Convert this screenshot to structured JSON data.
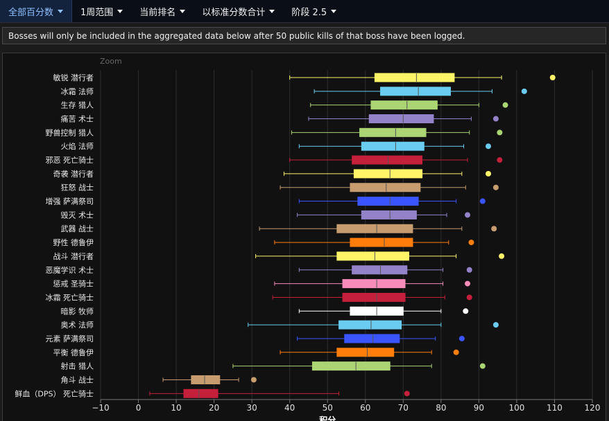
{
  "tabs": [
    {
      "label": "全部百分数",
      "active": true
    },
    {
      "label": "1周范围",
      "active": false
    },
    {
      "label": "当前排名",
      "active": false
    },
    {
      "label": "以标准分数合计",
      "active": false
    },
    {
      "label": "阶段 2.5",
      "active": false
    }
  ],
  "notice": "Bosses will only be included in the aggregated data below after 50 public kills of that boss have been logged.",
  "zoom_label": "Zoom",
  "chart_data": {
    "type": "boxplot",
    "orientation": "horizontal",
    "xlabel": "积分",
    "xlim": [
      -10,
      120
    ],
    "xticks": [
      -10,
      0,
      10,
      20,
      30,
      40,
      50,
      60,
      70,
      80,
      90,
      100,
      110,
      120
    ],
    "grid": true,
    "categories": [
      {
        "label": "敏锐 潜行者",
        "color": "#fff468",
        "min": 40,
        "q1": 62.5,
        "median": 73.5,
        "q3": 83.5,
        "max": 96,
        "outlier": 109.5
      },
      {
        "label": "冰霜 法师",
        "color": "#69ccf0",
        "min": 46.5,
        "q1": 64,
        "median": 74,
        "q3": 82.5,
        "max": 93.5,
        "outlier": 102
      },
      {
        "label": "生存 猎人",
        "color": "#abd473",
        "min": 45.5,
        "q1": 61.5,
        "median": 71,
        "q3": 79,
        "max": 90,
        "outlier": 97
      },
      {
        "label": "痛苦 术士",
        "color": "#9482c9",
        "min": 45,
        "q1": 61,
        "median": 70,
        "q3": 78,
        "max": 88,
        "outlier": 94.5
      },
      {
        "label": "野兽控制 猎人",
        "color": "#abd473",
        "min": 40.5,
        "q1": 58.5,
        "median": 68,
        "q3": 76,
        "max": 87.5,
        "outlier": 95.5
      },
      {
        "label": "火焰 法师",
        "color": "#69ccf0",
        "min": 42.5,
        "q1": 59,
        "median": 68,
        "q3": 75.5,
        "max": 86,
        "outlier": 92.5
      },
      {
        "label": "邪恶 死亡骑士",
        "color": "#c41f3b",
        "min": 40,
        "q1": 56.5,
        "median": 66,
        "q3": 75,
        "max": 87,
        "outlier": 95.5
      },
      {
        "label": "奇袭 潜行者",
        "color": "#fff468",
        "min": 38.5,
        "q1": 57,
        "median": 66.5,
        "q3": 75,
        "max": 85.5,
        "outlier": 92.5
      },
      {
        "label": "狂怒 战士",
        "color": "#c79c6e",
        "min": 37.5,
        "q1": 56,
        "median": 65.5,
        "q3": 74.5,
        "max": 86.5,
        "outlier": 94.5
      },
      {
        "label": "增强 萨满祭司",
        "color": "#3a55ff",
        "min": 42.5,
        "q1": 58,
        "median": 66.5,
        "q3": 74,
        "max": 84,
        "outlier": 91
      },
      {
        "label": "毁灭 术士",
        "color": "#9482c9",
        "min": 42,
        "q1": 59,
        "median": 66.5,
        "q3": 73.5,
        "max": 81.5,
        "outlier": 87
      },
      {
        "label": "武器 战士",
        "color": "#c79c6e",
        "min": 32,
        "q1": 52.5,
        "median": 63,
        "q3": 72.5,
        "max": 85.5,
        "outlier": 94
      },
      {
        "label": "野性 德鲁伊",
        "color": "#ff7d0a",
        "min": 36,
        "q1": 56,
        "median": 65,
        "q3": 72.5,
        "max": 82,
        "outlier": 88
      },
      {
        "label": "战斗 潜行者",
        "color": "#fff468",
        "min": 31,
        "q1": 52.5,
        "median": 62.5,
        "q3": 71.5,
        "max": 84,
        "outlier": 96
      },
      {
        "label": "恶魔学识 术士",
        "color": "#9482c9",
        "min": 42.5,
        "q1": 56.5,
        "median": 64,
        "q3": 71,
        "max": 80.5,
        "outlier": 87.5
      },
      {
        "label": "惩戒 圣骑士",
        "color": "#f58cba",
        "min": 36,
        "q1": 54,
        "median": 63,
        "q3": 70.5,
        "max": 80.5,
        "outlier": 87
      },
      {
        "label": "冰霜 死亡骑士",
        "color": "#c41f3b",
        "min": 35.5,
        "q1": 54,
        "median": 63,
        "q3": 70.5,
        "max": 81,
        "outlier": 87.5
      },
      {
        "label": "暗影 牧师",
        "color": "#ffffff",
        "min": 42.5,
        "q1": 56,
        "median": 63,
        "q3": 70,
        "max": 80,
        "outlier": 86.5
      },
      {
        "label": "奥术 法师",
        "color": "#69ccf0",
        "min": 29,
        "q1": 53,
        "median": 61.5,
        "q3": 69.5,
        "max": 80,
        "outlier": 94.5
      },
      {
        "label": "元素 萨满祭司",
        "color": "#3a55ff",
        "min": 42,
        "q1": 54.5,
        "median": 62,
        "q3": 69,
        "max": 78.5,
        "outlier": 85.5
      },
      {
        "label": "平衡 德鲁伊",
        "color": "#ff7d0a",
        "min": 37.5,
        "q1": 52.5,
        "median": 60.5,
        "q3": 67.5,
        "max": 77.5,
        "outlier": 84
      },
      {
        "label": "射击 猎人",
        "color": "#abd473",
        "min": 25,
        "q1": 46,
        "median": 57.5,
        "q3": 66.5,
        "max": 77.5,
        "outlier": 91
      },
      {
        "label": "角斗 战士",
        "color": "#c79c6e",
        "min": 6.5,
        "q1": 14,
        "median": 17.5,
        "q3": 21.5,
        "max": 26.5,
        "outlier": 30.5
      },
      {
        "label": "鲜血（DPS） 死亡骑士",
        "color": "#c41f3b",
        "min": 3,
        "q1": 12,
        "median": 16,
        "q3": 21,
        "max": 53,
        "outlier": 71
      }
    ]
  }
}
